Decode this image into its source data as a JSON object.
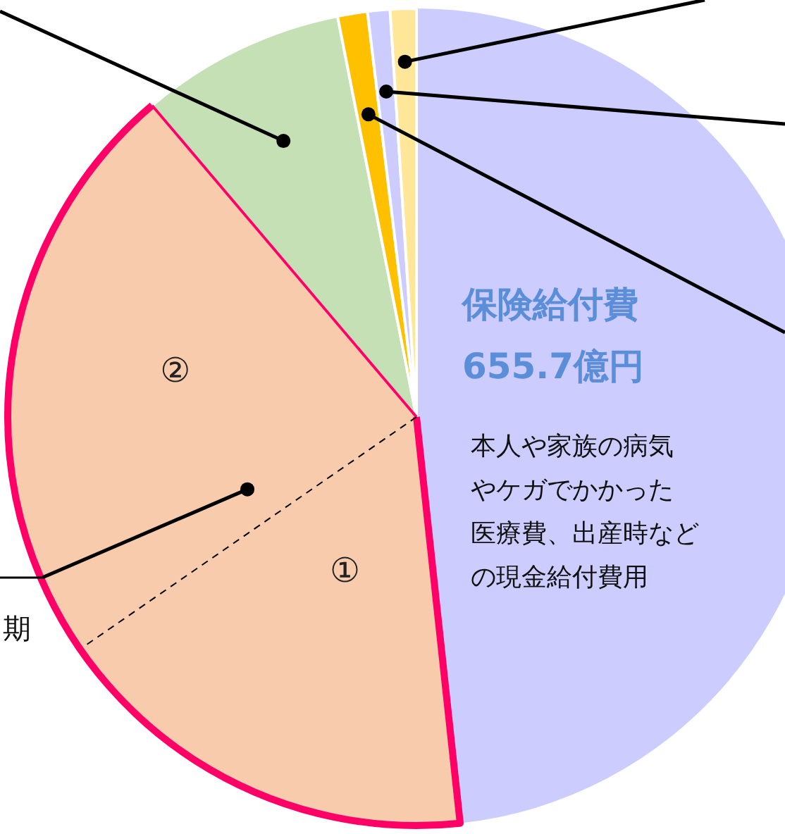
{
  "chart_data": {
    "type": "pie",
    "categories": [
      "保険給付費",
      "①",
      "②",
      null,
      null,
      null,
      null
    ],
    "values": [
      655.7,
      232,
      318,
      110,
      16,
      12,
      14
    ],
    "value_labels": [
      "655.7億円",
      null,
      null,
      null,
      null,
      null,
      null
    ],
    "colors": [
      "#ccccff",
      "#f8cbad",
      "#f8cbad",
      "#c5e0b4",
      "#ffc000",
      "#ccccff",
      "#ffe699"
    ],
    "annotations": [
      "本人や家族の病気",
      "やケガでかかった",
      "医療費、出産時など",
      "の現金給付費用",
      "期"
    ]
  }
}
